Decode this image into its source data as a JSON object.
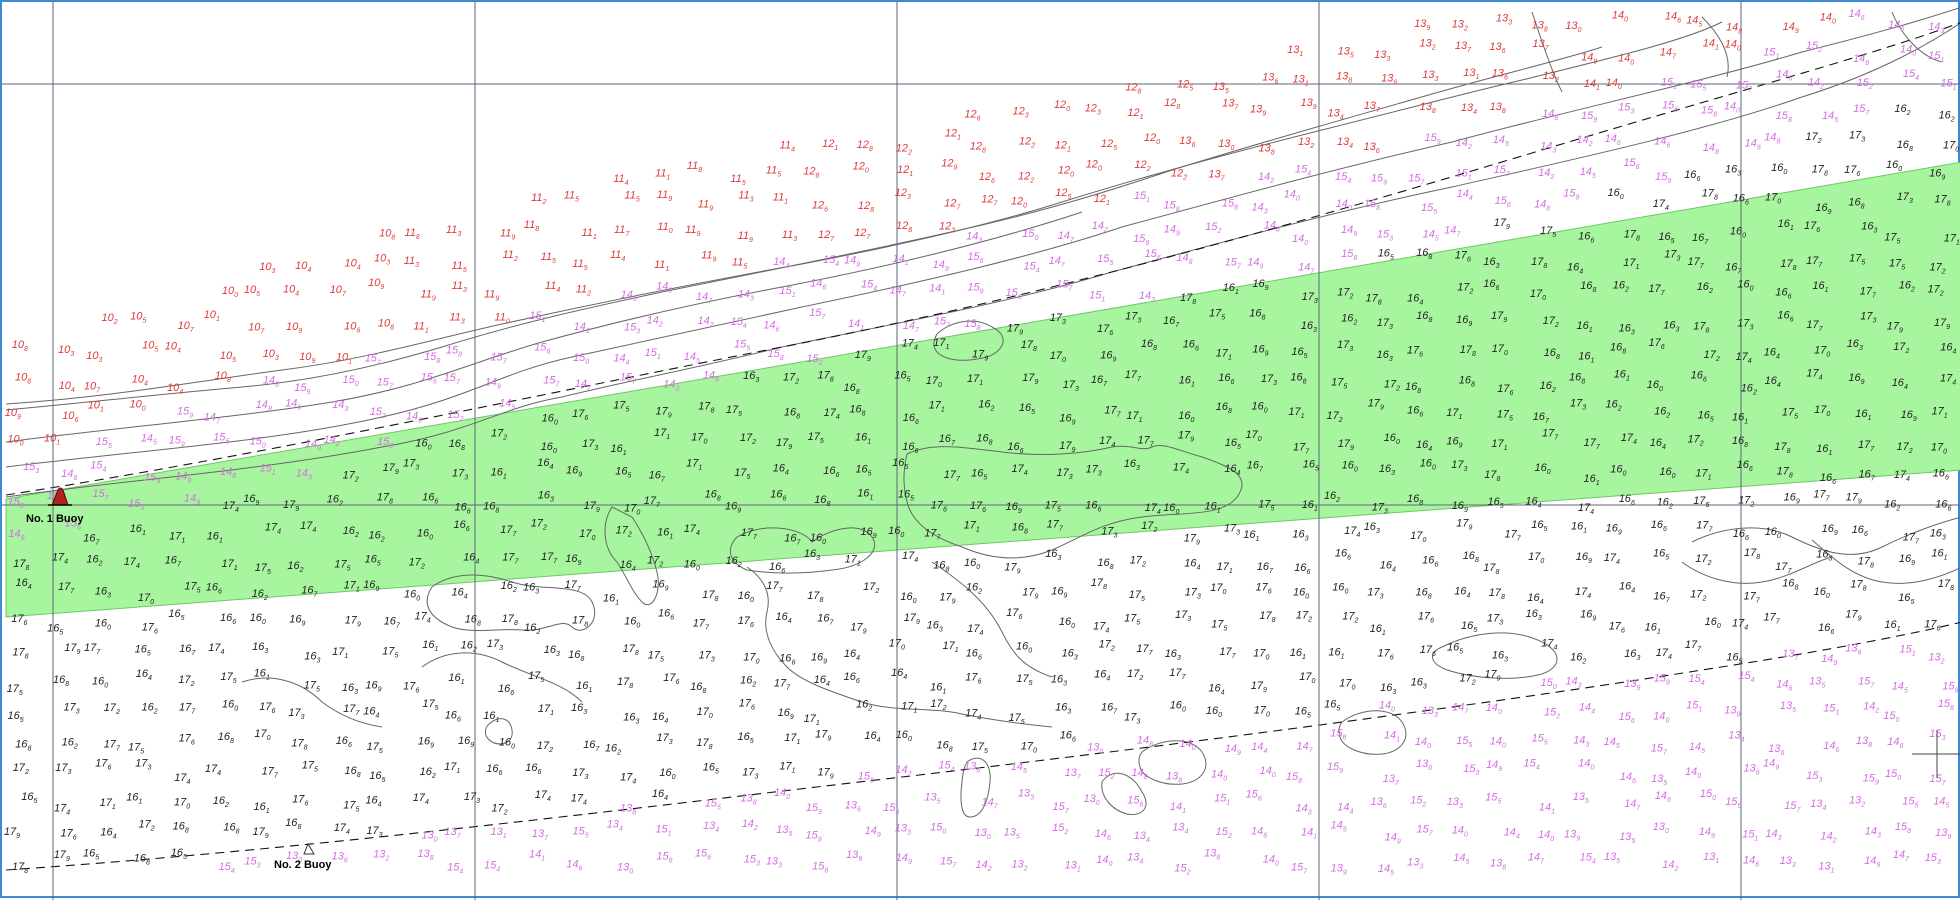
{
  "colors": {
    "frame": "#3f88d6",
    "channel_fill": "#a8f5a0",
    "channel_edge": "#6ec766",
    "grid": "#5c6678",
    "contour": "#666666",
    "sounding_shoal": "#e03a3a",
    "sounding_mid": "#d36ee0",
    "sounding_deep": "#222222",
    "buoy": "#b22222"
  },
  "map": {
    "labels": {
      "buoy_1": "No. 1 Buoy",
      "buoy_2": "No. 2 Buoy"
    },
    "icons": {
      "buoy_1": "red-buoy-icon",
      "buoy_2": "buoy-outline-icon",
      "crosshair": "crosshair-icon"
    }
  }
}
